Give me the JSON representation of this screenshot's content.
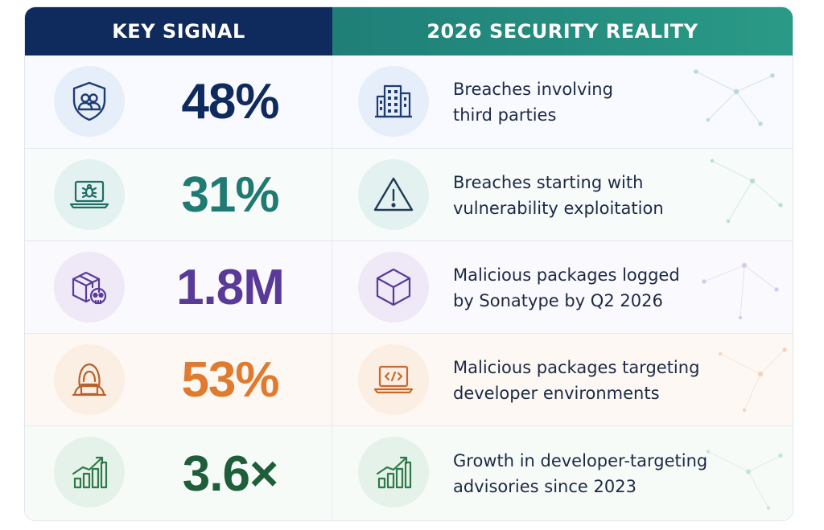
{
  "header": {
    "left": "KEY SIGNAL",
    "right": "2026 SECURITY REALITY"
  },
  "rows": [
    {
      "stat": "48%",
      "stat_color": "#0f2a5c",
      "left_icon": "shield-users-icon",
      "right_icon": "building-icon",
      "desc_line1": "Breaches involving",
      "desc_line2": "third parties",
      "tint": "#e6eefa",
      "stroke": "#1f3b73"
    },
    {
      "stat": "31%",
      "stat_color": "#1f7a72",
      "left_icon": "laptop-bug-icon",
      "right_icon": "warning-triangle-icon",
      "desc_line1": "Breaches starting with",
      "desc_line2": "vulnerability exploitation",
      "tint": "#e3f2f0",
      "stroke": "#1f6f68"
    },
    {
      "stat": "1.8M",
      "stat_color": "#5a3a99",
      "left_icon": "package-skull-icon",
      "right_icon": "cube-icon",
      "desc_line1": "Malicious packages logged",
      "desc_line2": "by Sonatype by Q2 2026",
      "tint": "#eee8f7",
      "stroke": "#5a3a99"
    },
    {
      "stat": "53%",
      "stat_color": "#e07a2e",
      "left_icon": "hooded-hacker-icon",
      "right_icon": "laptop-code-icon",
      "desc_line1": "Malicious packages targeting",
      "desc_line2": "developer environments",
      "tint": "#fbeee3",
      "stroke": "#c8692a"
    },
    {
      "stat": "3.6×",
      "stat_color": "#1f5e3a",
      "left_icon": "growth-chart-icon",
      "right_icon": "growth-chart-icon",
      "desc_line1": "Growth in developer-targeting",
      "desc_line2": "advisories since 2023",
      "tint": "#e5f2e9",
      "stroke": "#2e7a4a"
    }
  ]
}
